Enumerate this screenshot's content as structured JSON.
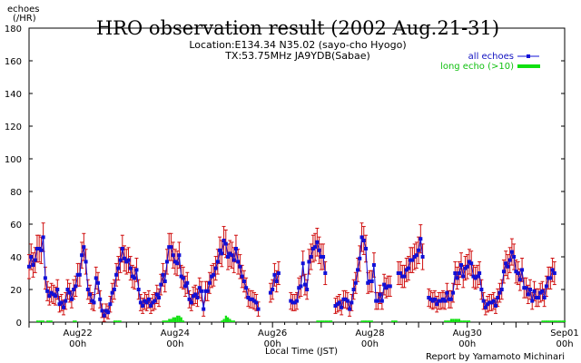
{
  "chart_data": {
    "type": "line",
    "title": "HRO observation result (2002 Aug.21-31)",
    "subtitle_lines": [
      "Location:E134.34 N35.02 (sayo-cho Hyogo)",
      "TX:53.75MHz JA9YDB(Sabae)"
    ],
    "ylabel_lines": [
      "echoes",
      "(/HR)"
    ],
    "xlabel": "Local Time (JST)",
    "credit": "Report by Yamamoto Michinari",
    "ylim": [
      0,
      180
    ],
    "yticks": [
      0,
      20,
      40,
      60,
      80,
      100,
      120,
      140,
      160,
      180
    ],
    "xlim_hours": [
      0,
      264
    ],
    "xticks": [
      {
        "hours": 24,
        "date": "Aug22",
        "time": "00h"
      },
      {
        "hours": 72,
        "date": "Aug24",
        "time": "00h"
      },
      {
        "hours": 120,
        "date": "Aug26",
        "time": "00h"
      },
      {
        "hours": 168,
        "date": "Aug28",
        "time": "00h"
      },
      {
        "hours": 216,
        "date": "Aug30",
        "time": "00h"
      },
      {
        "hours": 264,
        "date": "Sep01",
        "time": "00h"
      }
    ],
    "legend_position": "top-right",
    "colors": {
      "all": "#1010d8",
      "long": "#10e010",
      "error": "#d01010"
    },
    "series": [
      {
        "name": "all echoes",
        "x_start_hour": 0,
        "x_step_hours": 1,
        "values": [
          34,
          40,
          35,
          38,
          45,
          45,
          44,
          52,
          27,
          19,
          16,
          18,
          17,
          16,
          20,
          11,
          12,
          9,
          13,
          20,
          18,
          14,
          20,
          22,
          29,
          29,
          41,
          46,
          37,
          20,
          17,
          13,
          12,
          27,
          24,
          14,
          7,
          4,
          7,
          6,
          11,
          18,
          20,
          29,
          33,
          38,
          45,
          39,
          37,
          38,
          33,
          28,
          27,
          32,
          20,
          12,
          10,
          13,
          12,
          14,
          10,
          12,
          13,
          17,
          15,
          23,
          29,
          25,
          37,
          46,
          46,
          41,
          37,
          36,
          41,
          28,
          27,
          22,
          24,
          14,
          12,
          16,
          17,
          15,
          21,
          19,
          8,
          19,
          19,
          24,
          28,
          29,
          33,
          37,
          44,
          42,
          50,
          48,
          40,
          42,
          41,
          38,
          45,
          37,
          34,
          28,
          25,
          21,
          15,
          14,
          14,
          13,
          12,
          8,
          null,
          null,
          null,
          null,
          null,
          18,
          20,
          29,
          25,
          30,
          null,
          null,
          null,
          null,
          null,
          13,
          12,
          12,
          13,
          21,
          22,
          36,
          23,
          20,
          37,
          40,
          45,
          46,
          49,
          44,
          40,
          40,
          30,
          null,
          null,
          null,
          null,
          10,
          11,
          12,
          9,
          14,
          14,
          13,
          8,
          12,
          20,
          24,
          32,
          39,
          52,
          50,
          45,
          24,
          25,
          25,
          35,
          13,
          13,
          17,
          13,
          23,
          21,
          22,
          22,
          null,
          null,
          null,
          30,
          30,
          28,
          28,
          32,
          33,
          38,
          38,
          40,
          41,
          44,
          51,
          40,
          null,
          null,
          15,
          14,
          13,
          14,
          11,
          13,
          13,
          14,
          13,
          18,
          14,
          14,
          18,
          30,
          27,
          30,
          35,
          28,
          33,
          34,
          37,
          36,
          28,
          27,
          28,
          30,
          20,
          13,
          9,
          11,
          12,
          12,
          13,
          10,
          15,
          18,
          20,
          31,
          36,
          34,
          38,
          43,
          40,
          31,
          30,
          26,
          32,
          21,
          21,
          17,
          20,
          13,
          19,
          15,
          15,
          18,
          19,
          15,
          22,
          27,
          27,
          32,
          30
        ]
      },
      {
        "name": "long echo (>10)",
        "x_start_hour": 0,
        "x_step_hours": 1,
        "values": [
          0,
          0,
          0,
          0,
          1,
          1,
          1,
          1,
          0,
          1,
          1,
          1,
          0,
          0,
          0,
          0,
          0,
          0,
          0,
          0,
          0,
          0,
          1,
          1,
          0,
          0,
          0,
          0,
          0,
          0,
          0,
          0,
          0,
          0,
          0,
          0,
          0,
          0,
          0,
          0,
          0,
          0,
          1,
          1,
          1,
          1,
          0,
          0,
          0,
          0,
          0,
          0,
          0,
          0,
          0,
          0,
          0,
          0,
          0,
          0,
          0,
          0,
          0,
          0,
          0,
          0,
          1,
          1,
          1,
          2,
          2,
          3,
          3,
          4,
          4,
          3,
          1,
          0,
          0,
          0,
          0,
          0,
          0,
          0,
          0,
          0,
          0,
          0,
          0,
          0,
          0,
          0,
          0,
          0,
          0,
          1,
          2,
          4,
          3,
          2,
          1,
          1,
          0,
          0,
          0,
          0,
          0,
          0,
          0,
          0,
          0,
          0,
          0,
          0,
          0,
          0,
          0,
          0,
          0,
          0,
          0,
          0,
          0,
          0,
          0,
          0,
          0,
          0,
          0,
          0,
          0,
          0,
          0,
          0,
          0,
          0,
          0,
          0,
          0,
          0,
          0,
          0,
          1,
          1,
          1,
          1,
          1,
          1,
          1,
          1,
          0,
          0,
          0,
          0,
          0,
          0,
          0,
          0,
          0,
          0,
          0,
          0,
          0,
          0,
          1,
          1,
          1,
          1,
          1,
          1,
          0,
          0,
          0,
          0,
          0,
          0,
          0,
          0,
          0,
          1,
          1,
          1,
          0,
          0,
          0,
          0,
          0,
          0,
          0,
          0,
          0,
          0,
          0,
          0,
          0,
          0,
          0,
          0,
          0,
          0,
          0,
          0,
          0,
          0,
          0,
          1,
          1,
          1,
          2,
          2,
          2,
          2,
          2,
          1,
          1,
          1,
          1,
          1,
          0,
          0,
          0,
          0,
          0,
          0,
          0,
          0,
          0,
          0,
          0,
          0,
          0,
          0,
          0,
          0,
          0,
          0,
          0,
          0,
          0,
          0,
          0,
          0,
          0,
          0,
          0,
          0,
          0,
          0,
          0,
          0,
          0,
          0,
          0,
          1,
          1,
          1,
          1,
          1,
          1,
          1,
          1,
          1,
          1,
          1,
          1,
          0,
          0,
          0,
          0,
          0,
          0,
          0,
          0
        ]
      }
    ]
  }
}
